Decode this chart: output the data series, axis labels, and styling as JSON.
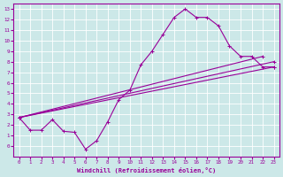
{
  "xlabel": "Windchill (Refroidissement éolien,°C)",
  "bg_color": "#cce8e8",
  "line_color": "#990099",
  "grid_color": "#b0d8d8",
  "xlim": [
    -0.5,
    23.5
  ],
  "ylim": [
    -1.0,
    13.5
  ],
  "xticks": [
    0,
    1,
    2,
    3,
    4,
    5,
    6,
    7,
    8,
    9,
    10,
    11,
    12,
    13,
    14,
    15,
    16,
    17,
    18,
    19,
    20,
    21,
    22,
    23
  ],
  "yticks": [
    0,
    1,
    2,
    3,
    4,
    5,
    6,
    7,
    8,
    9,
    10,
    11,
    12,
    13
  ],
  "series_markers": [
    {
      "x": [
        0,
        1,
        2,
        3,
        4,
        5,
        6,
        7,
        8,
        9,
        10,
        11,
        12,
        13,
        14,
        15,
        16,
        17,
        18,
        19,
        20,
        21,
        22,
        23
      ],
      "y": [
        2.7,
        1.5,
        1.5,
        2.5,
        1.4,
        1.3,
        -0.3,
        0.5,
        2.3,
        4.4,
        5.3,
        7.7,
        9.0,
        10.6,
        12.2,
        13.0,
        12.2,
        12.2,
        11.4,
        9.5,
        8.5,
        8.5,
        7.5,
        7.5
      ]
    }
  ],
  "series_lines": [
    {
      "x": [
        0,
        23
      ],
      "y": [
        2.7,
        7.5
      ]
    },
    {
      "x": [
        0,
        22
      ],
      "y": [
        2.7,
        8.5
      ]
    },
    {
      "x": [
        0,
        23
      ],
      "y": [
        2.7,
        7.5
      ]
    }
  ]
}
